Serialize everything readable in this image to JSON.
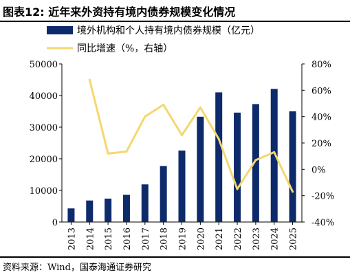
{
  "figure": {
    "title": "图表12:  近年来外资持有境内债券规模变化情况",
    "source": "资料来源：Wind，国泰海通证券研究"
  },
  "chart_data": {
    "type": "bar",
    "categories": [
      "2013",
      "2014",
      "2015",
      "2016",
      "2017",
      "2018",
      "2019",
      "2020",
      "2021",
      "2022",
      "2023",
      "2024",
      "2025"
    ],
    "series": [
      {
        "name": "境外机构和个人持有境内债券规模（亿元）",
        "type": "bar",
        "axis": "left",
        "color": "#0d2a6b",
        "values": [
          4300,
          6800,
          7400,
          8600,
          11900,
          17700,
          22600,
          33300,
          41000,
          34600,
          37300,
          42100,
          35000
        ]
      },
      {
        "name": "同比增速（%，右轴）",
        "type": "line",
        "axis": "right",
        "color": "#f5d76e",
        "values": [
          null,
          68,
          12,
          13.5,
          40,
          49,
          26,
          47,
          23,
          -15,
          7,
          13,
          -17
        ]
      }
    ],
    "yaxis_left": {
      "min": 0,
      "max": 50000,
      "ticks": [
        "0",
        "10000",
        "20000",
        "30000",
        "40000",
        "50000"
      ]
    },
    "yaxis_right": {
      "min": -40,
      "max": 80,
      "ticks": [
        "-40%",
        "-20%",
        "0%",
        "20%",
        "40%",
        "60%",
        "80%"
      ]
    },
    "grid": false,
    "legend_position": "top-left"
  }
}
